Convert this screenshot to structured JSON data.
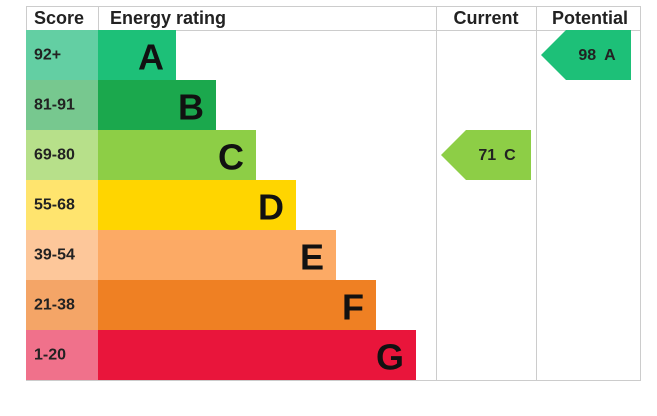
{
  "header": {
    "score": "Score",
    "rating": "Energy rating",
    "current": "Current",
    "potential": "Potential"
  },
  "bands": [
    {
      "score": "92+",
      "letter": "A"
    },
    {
      "score": "81-91",
      "letter": "B"
    },
    {
      "score": "69-80",
      "letter": "C"
    },
    {
      "score": "55-68",
      "letter": "D"
    },
    {
      "score": "39-54",
      "letter": "E"
    },
    {
      "score": "21-38",
      "letter": "F"
    },
    {
      "score": "1-20",
      "letter": "G"
    }
  ],
  "current": {
    "score": "71",
    "letter": "C"
  },
  "potential": {
    "score": "98",
    "letter": "A"
  }
}
